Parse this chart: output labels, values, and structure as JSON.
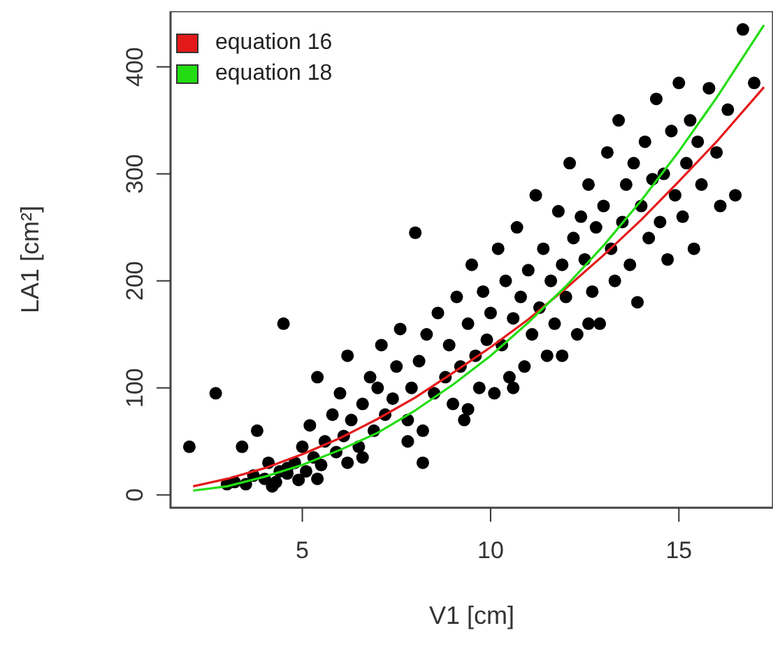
{
  "chart_data": {
    "type": "scatter",
    "xlabel": "V1 [cm]",
    "ylabel": "LA1 [cm²]",
    "xlim": [
      1.5,
      17.5
    ],
    "ylim": [
      -12,
      452
    ],
    "xticks": [
      5,
      10,
      15
    ],
    "yticks": [
      0,
      100,
      200,
      300,
      400
    ],
    "legend": "top left",
    "series": [
      {
        "color": "#000000",
        "marker": "circle",
        "x": [
          2,
          2.7,
          3,
          3.2,
          3.4,
          3.5,
          3.7,
          3.8,
          4,
          4.1,
          4.3,
          4.4,
          4.5,
          4.6,
          4.8,
          4.9,
          5,
          5.1,
          5.2,
          5.3,
          5.4,
          5.5,
          5.6,
          5.8,
          5.9,
          6,
          6.1,
          6.2,
          6.3,
          6.5,
          6.6,
          6.8,
          6.9,
          7,
          7.1,
          7.2,
          7.4,
          7.5,
          7.6,
          7.8,
          7.9,
          8,
          8.1,
          8.2,
          8.3,
          8.5,
          8.6,
          8.8,
          8.9,
          9,
          9.1,
          9.2,
          9.3,
          9.4,
          9.5,
          9.6,
          9.7,
          9.8,
          9.9,
          10,
          10.1,
          10.2,
          10.3,
          10.4,
          10.5,
          10.6,
          10.7,
          10.8,
          10.9,
          11,
          11.1,
          11.2,
          11.3,
          11.4,
          11.5,
          11.6,
          11.7,
          11.8,
          11.9,
          12,
          12.1,
          12.2,
          12.3,
          12.4,
          12.5,
          12.6,
          12.7,
          12.8,
          12.9,
          13,
          13.1,
          13.2,
          13.3,
          13.4,
          13.5,
          13.6,
          13.7,
          13.8,
          13.9,
          14,
          14.1,
          14.2,
          14.3,
          14.4,
          14.5,
          14.6,
          14.7,
          14.8,
          14.9,
          15,
          15.1,
          15.2,
          15.3,
          15.4,
          15.5,
          15.6,
          15.8,
          16,
          16.1,
          16.3,
          16.5,
          16.7,
          17,
          4.6,
          5.4,
          6.2,
          7.8,
          8.2,
          12.6,
          4.2,
          6.6,
          10.6,
          11.9,
          9.4
        ],
        "values": [
          45,
          95,
          10,
          12,
          45,
          10,
          18,
          60,
          15,
          30,
          12,
          22,
          160,
          20,
          30,
          14,
          45,
          22,
          65,
          35,
          110,
          28,
          50,
          75,
          40,
          95,
          55,
          130,
          70,
          45,
          85,
          110,
          60,
          100,
          140,
          75,
          90,
          120,
          155,
          70,
          100,
          245,
          125,
          60,
          150,
          95,
          170,
          110,
          140,
          85,
          185,
          120,
          70,
          160,
          215,
          130,
          100,
          190,
          145,
          170,
          95,
          230,
          140,
          200,
          110,
          165,
          250,
          185,
          120,
          210,
          150,
          280,
          175,
          230,
          130,
          200,
          160,
          265,
          215,
          185,
          310,
          240,
          150,
          260,
          220,
          290,
          190,
          250,
          160,
          270,
          320,
          230,
          200,
          350,
          255,
          290,
          215,
          310,
          180,
          270,
          330,
          240,
          295,
          370,
          255,
          300,
          220,
          340,
          280,
          385,
          260,
          310,
          350,
          230,
          330,
          290,
          380,
          320,
          270,
          360,
          280,
          435,
          385,
          25,
          15,
          30,
          50,
          30,
          160,
          8,
          35,
          100,
          130,
          80
        ]
      },
      {
        "type": "line",
        "marker": "none",
        "name": "equation 16",
        "color": "#e4191a",
        "x": [
          2.1,
          3,
          4,
          5,
          6,
          7,
          8,
          9,
          10,
          11,
          12,
          13,
          14,
          15,
          16,
          17.26
        ],
        "values": [
          8,
          15,
          25,
          38,
          53,
          71,
          91,
          114,
          138,
          164,
          193,
          224,
          257,
          293,
          330,
          381
        ]
      },
      {
        "type": "line",
        "marker": "none",
        "name": "equation 18",
        "color": "#22dd11",
        "x": [
          2.1,
          3,
          4,
          5,
          6,
          7,
          8,
          9,
          10,
          11,
          12,
          13,
          14,
          15,
          16,
          17.26
        ],
        "values": [
          4,
          8,
          17,
          28,
          42,
          58,
          79,
          103,
          130,
          161,
          195,
          233,
          275,
          321,
          371,
          439
        ]
      }
    ]
  }
}
